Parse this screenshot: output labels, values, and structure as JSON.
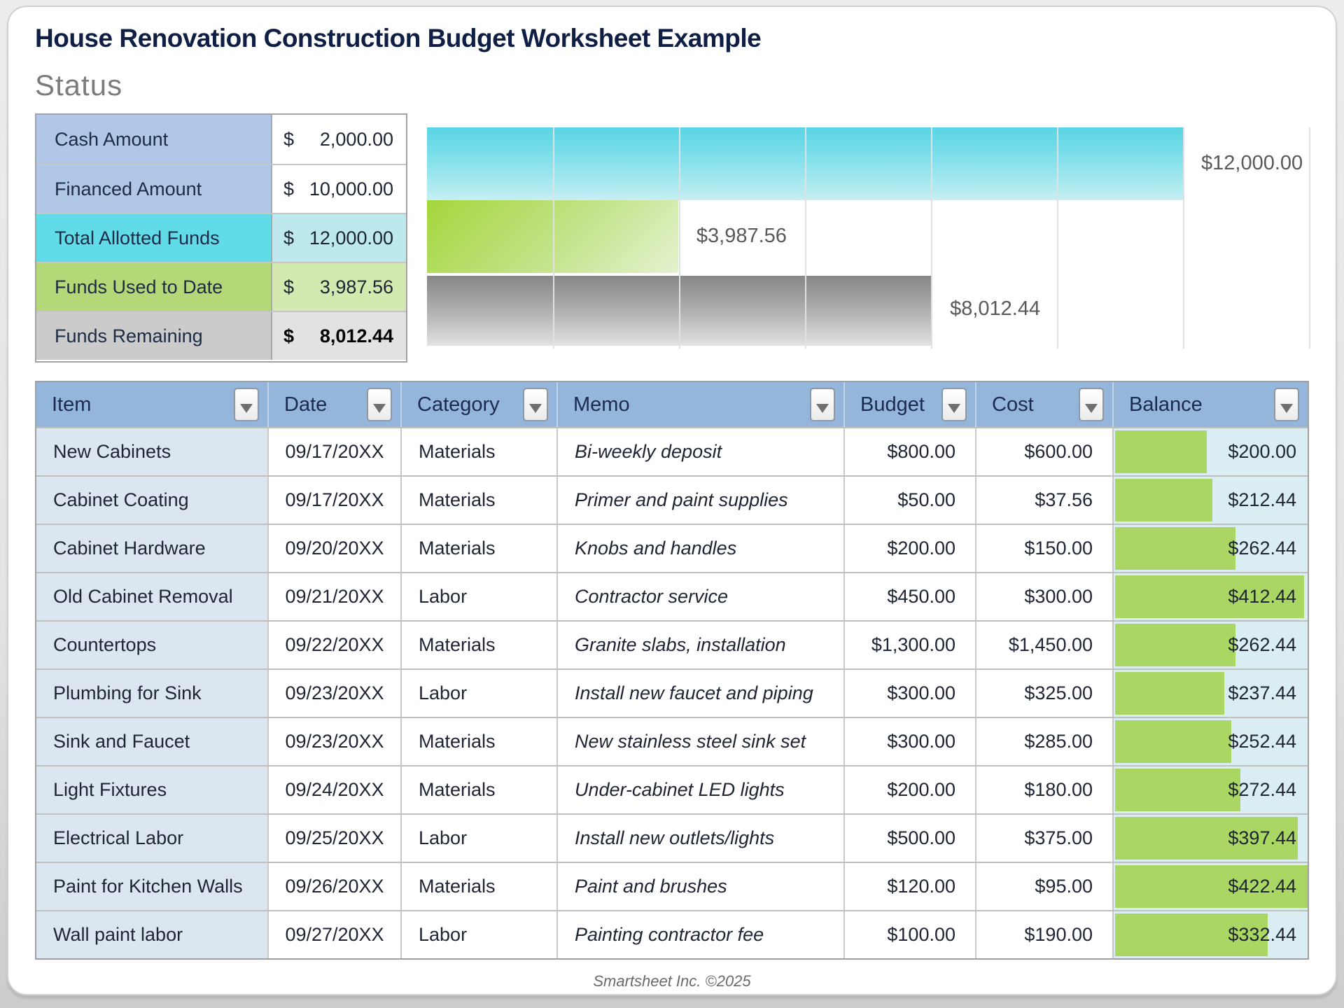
{
  "page": {
    "title": "House Renovation Construction Budget Worksheet Example",
    "footer": "Smartsheet Inc. ©2025"
  },
  "status": {
    "heading": "Status",
    "rows": [
      {
        "label": "Cash Amount",
        "currency": "$",
        "amount": "2,000.00",
        "theme": "blue",
        "bold": false
      },
      {
        "label": "Financed Amount",
        "currency": "$",
        "amount": "10,000.00",
        "theme": "blue",
        "bold": false
      },
      {
        "label": "Total Allotted Funds",
        "currency": "$",
        "amount": "12,000.00",
        "theme": "cyan",
        "bold": false
      },
      {
        "label": "Funds Used to Date",
        "currency": "$",
        "amount": "3,987.56",
        "theme": "green",
        "bold": false
      },
      {
        "label": "Funds Remaining",
        "currency": "$",
        "amount": "8,012.44",
        "theme": "gray",
        "bold": true
      }
    ]
  },
  "chart_data": {
    "type": "bar",
    "orientation": "horizontal",
    "title": "",
    "xlabel": "",
    "ylabel": "",
    "categories": [
      "Total Allotted Funds",
      "Funds Used to Date",
      "Funds Remaining"
    ],
    "values": [
      12000,
      3987.56,
      8012.44
    ],
    "data_labels": [
      "$12,000.00",
      "$3,987.56",
      "$8,012.44"
    ],
    "bar_colors": [
      "cyan",
      "green",
      "gray"
    ],
    "xlim": [
      0,
      14000
    ],
    "gridline_interval": 2000,
    "grid": true,
    "legend": "none"
  },
  "table": {
    "columns": [
      {
        "label": "Item"
      },
      {
        "label": "Date"
      },
      {
        "label": "Category"
      },
      {
        "label": "Memo"
      },
      {
        "label": "Budget"
      },
      {
        "label": "Cost"
      },
      {
        "label": "Balance"
      }
    ],
    "balance_bar_max": 422.44,
    "rows": [
      {
        "item": "New Cabinets",
        "date": "09/17/20XX",
        "category": "Materials",
        "memo": "Bi-weekly deposit",
        "budget": "$800.00",
        "cost": "$600.00",
        "balance": "$200.00",
        "balance_value": 200.0
      },
      {
        "item": "Cabinet Coating",
        "date": "09/17/20XX",
        "category": "Materials",
        "memo": "Primer and paint supplies",
        "budget": "$50.00",
        "cost": "$37.56",
        "balance": "$212.44",
        "balance_value": 212.44
      },
      {
        "item": "Cabinet Hardware",
        "date": "09/20/20XX",
        "category": "Materials",
        "memo": "Knobs and handles",
        "budget": "$200.00",
        "cost": "$150.00",
        "balance": "$262.44",
        "balance_value": 262.44
      },
      {
        "item": "Old Cabinet Removal",
        "date": "09/21/20XX",
        "category": "Labor",
        "memo": "Contractor service",
        "budget": "$450.00",
        "cost": "$300.00",
        "balance": "$412.44",
        "balance_value": 412.44
      },
      {
        "item": "Countertops",
        "date": "09/22/20XX",
        "category": "Materials",
        "memo": "Granite slabs, installation",
        "budget": "$1,300.00",
        "cost": "$1,450.00",
        "balance": "$262.44",
        "balance_value": 262.44
      },
      {
        "item": "Plumbing for Sink",
        "date": "09/23/20XX",
        "category": "Labor",
        "memo": "Install new faucet and piping",
        "budget": "$300.00",
        "cost": "$325.00",
        "balance": "$237.44",
        "balance_value": 237.44
      },
      {
        "item": "Sink and Faucet",
        "date": "09/23/20XX",
        "category": "Materials",
        "memo": "New stainless steel sink set",
        "budget": "$300.00",
        "cost": "$285.00",
        "balance": "$252.44",
        "balance_value": 252.44
      },
      {
        "item": "Light Fixtures",
        "date": "09/24/20XX",
        "category": "Materials",
        "memo": "Under-cabinet LED lights",
        "budget": "$200.00",
        "cost": "$180.00",
        "balance": "$272.44",
        "balance_value": 272.44
      },
      {
        "item": "Electrical Labor",
        "date": "09/25/20XX",
        "category": "Labor",
        "memo": "Install new outlets/lights",
        "budget": "$500.00",
        "cost": "$375.00",
        "balance": "$397.44",
        "balance_value": 397.44
      },
      {
        "item": "Paint for Kitchen Walls",
        "date": "09/26/20XX",
        "category": "Materials",
        "memo": "Paint and brushes",
        "budget": "$120.00",
        "cost": "$95.00",
        "balance": "$422.44",
        "balance_value": 422.44
      },
      {
        "item": "Wall paint labor",
        "date": "09/27/20XX",
        "category": "Labor",
        "memo": "Painting contractor fee",
        "budget": "$100.00",
        "cost": "$190.00",
        "balance": "$332.44",
        "balance_value": 332.44
      }
    ]
  },
  "colors": {
    "accent_header_blue": "#95b6db",
    "item_cell_blue": "#dce6f1",
    "status_cyan": "#62dbe8",
    "status_green": "#b3d878",
    "status_gray": "#cbcbcb",
    "balance_bar_green": "#aad763",
    "balance_cell_bg": "#d9edf3",
    "title_navy": "#0f1e45"
  }
}
